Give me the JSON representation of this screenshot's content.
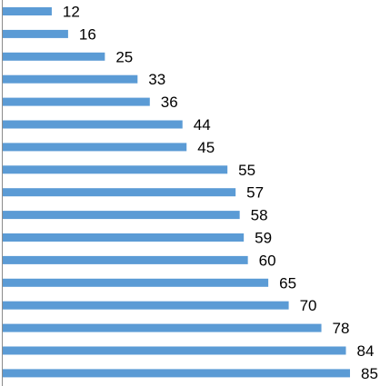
{
  "chart_data": {
    "type": "bar",
    "orientation": "horizontal",
    "values": [
      12,
      16,
      25,
      33,
      36,
      44,
      45,
      55,
      57,
      58,
      59,
      60,
      65,
      70,
      78,
      84,
      85
    ],
    "data_labels": [
      "12",
      "16",
      "25",
      "33",
      "36",
      "44",
      "45",
      "55",
      "57",
      "58",
      "59",
      "60",
      "65",
      "70",
      "78",
      "84",
      "85"
    ],
    "title": "",
    "xlabel": "",
    "ylabel": "",
    "xlim": [
      0,
      85
    ],
    "grid": false,
    "legend": "none",
    "colors": {
      "bar": "#5b9bd5",
      "axis": "#8c8c8c",
      "label": "#000000"
    }
  }
}
